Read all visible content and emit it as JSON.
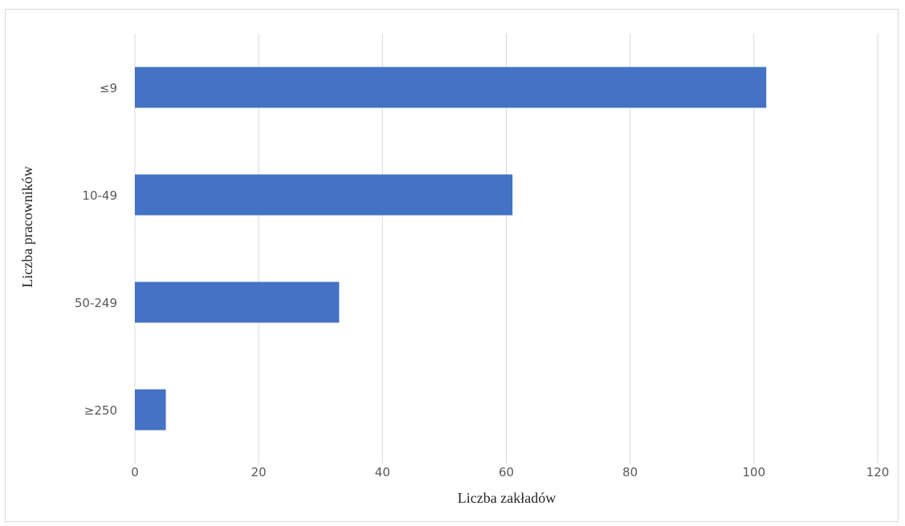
{
  "chart_data": {
    "type": "bar",
    "orientation": "horizontal",
    "categories": [
      "≤9",
      "10-49",
      "50-249",
      "≥250"
    ],
    "values": [
      102,
      61,
      33,
      5
    ],
    "xlabel": "Liczba zakładów",
    "ylabel": "Liczba pracowników",
    "xlim": [
      0,
      120
    ],
    "xticks": [
      "0",
      "20",
      "40",
      "60",
      "80",
      "100",
      "120"
    ],
    "grid": true,
    "legend": "none",
    "bar_color": "#4472c4",
    "grid_color": "#d9d9d9"
  }
}
